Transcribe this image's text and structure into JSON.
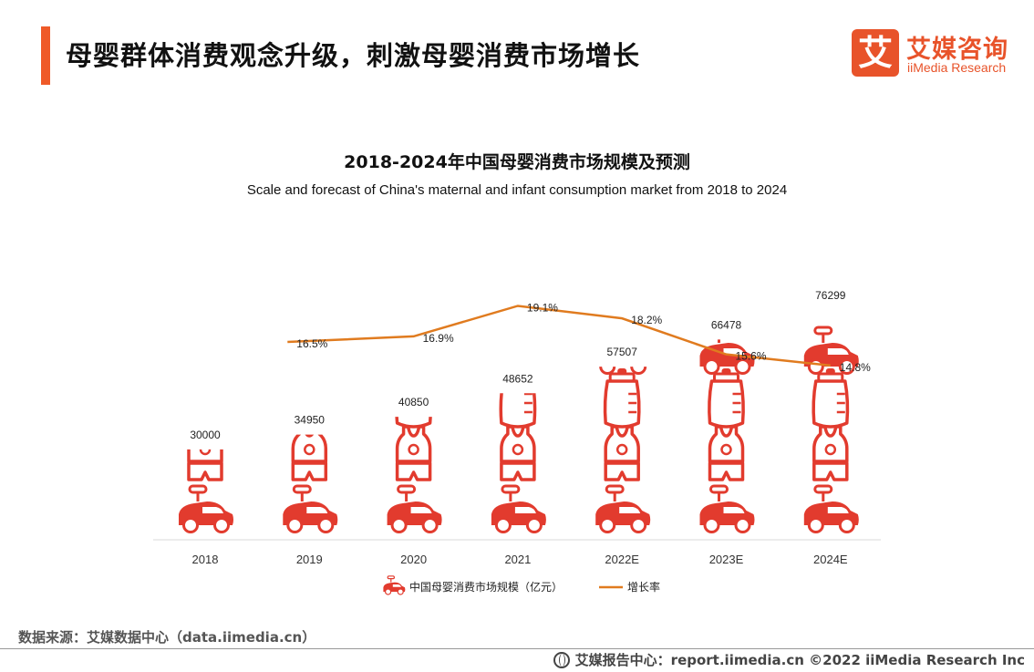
{
  "header": {
    "title": "母婴群体消费观念升级，刺激母婴消费市场增长"
  },
  "logo": {
    "mark": "艾",
    "cn": "艾媒咨询",
    "en": "iiMedia Research"
  },
  "colors": {
    "accent": "#ef5a28",
    "icon_red": "#e23b2e",
    "line_orange": "#e07b1f"
  },
  "chart_data": {
    "type": "bar",
    "title": "2018-2024年中国母婴消费市场规模及预测",
    "subtitle": "Scale and forecast of China's maternal and infant consumption market from 2018 to 2024",
    "categories": [
      "2018",
      "2019",
      "2020",
      "2021",
      "2022E",
      "2023E",
      "2024E"
    ],
    "series": [
      {
        "name": "中国母婴消费市场规模（亿元）",
        "type": "bar",
        "values": [
          30000,
          34950,
          40850,
          48652,
          57507,
          66478,
          76299
        ],
        "labels": [
          "30000",
          "34950",
          "40850",
          "48652",
          "57507",
          "66478",
          "76299"
        ],
        "icon": "baby-pictogram"
      },
      {
        "name": "增长率",
        "type": "line",
        "values": [
          null,
          16.5,
          16.9,
          19.1,
          18.2,
          15.6,
          14.8
        ],
        "labels": [
          "",
          "16.5%",
          "16.9%",
          "19.1%",
          "18.2%",
          "15.6%",
          "14.8%"
        ]
      }
    ],
    "legend_position": "bottom",
    "grid": false
  },
  "footer": {
    "source": "数据来源：艾媒数据中心（data.iimedia.cn）",
    "report": "艾媒报告中心：report.iimedia.cn  ©2022  iiMedia Research  Inc"
  }
}
